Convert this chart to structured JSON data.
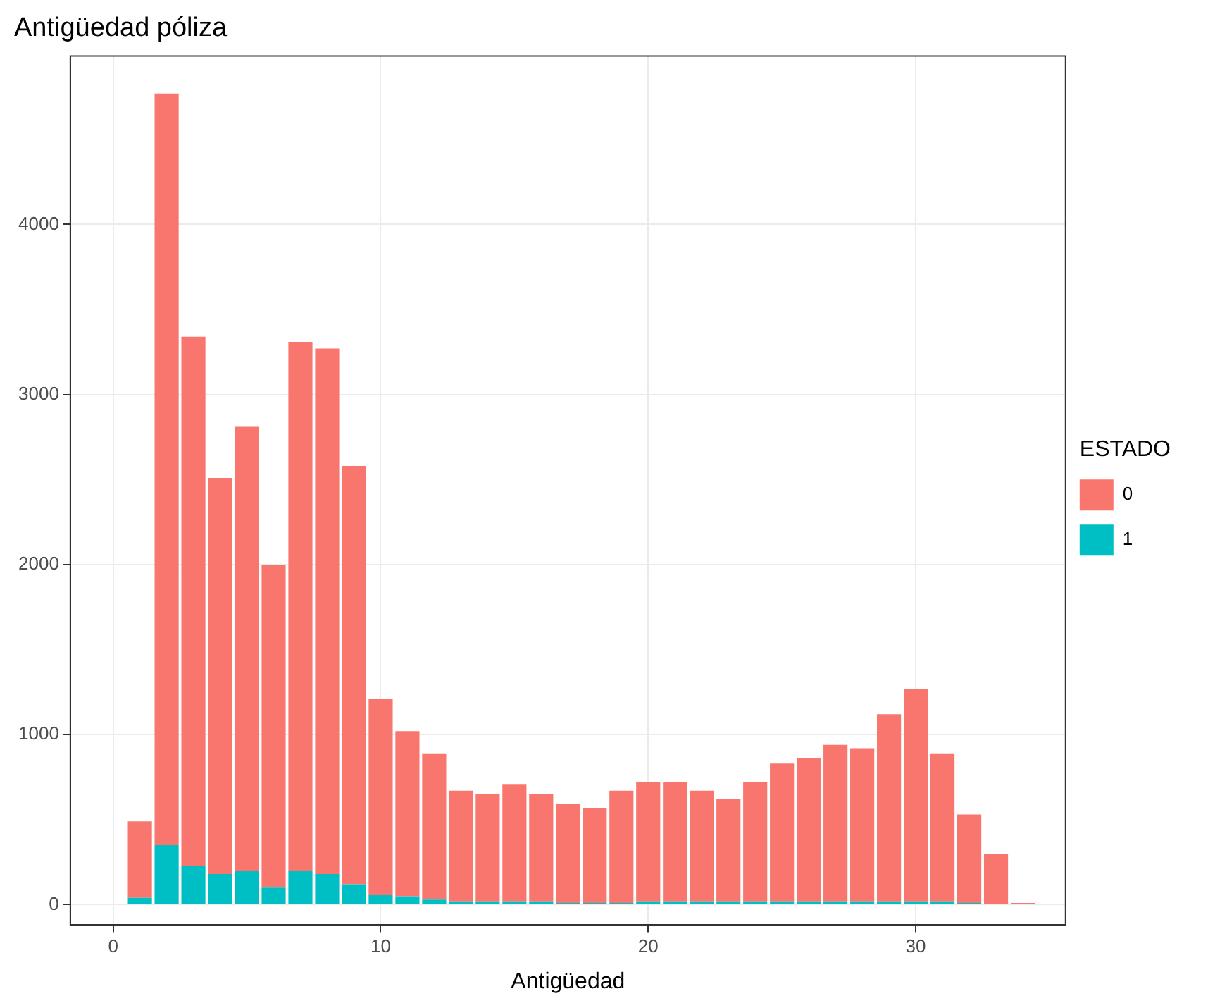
{
  "chart_data": {
    "type": "bar",
    "title": "Antigüedad póliza",
    "xlabel": "Antigüedad",
    "legend_title": "ESTADO",
    "stacked": true,
    "grid": true,
    "legend": "right",
    "x": [
      1,
      2,
      3,
      4,
      5,
      6,
      7,
      8,
      9,
      10,
      11,
      12,
      13,
      14,
      15,
      16,
      17,
      18,
      19,
      20,
      21,
      22,
      23,
      24,
      25,
      26,
      27,
      28,
      29,
      30,
      31,
      32,
      33,
      34
    ],
    "series": [
      {
        "name": "1",
        "color": "#00bfc4",
        "values": [
          40,
          350,
          230,
          180,
          200,
          100,
          200,
          180,
          120,
          60,
          50,
          30,
          20,
          20,
          20,
          20,
          10,
          10,
          10,
          20,
          20,
          20,
          20,
          20,
          20,
          20,
          20,
          20,
          20,
          20,
          20,
          10,
          0,
          0
        ]
      },
      {
        "name": "0",
        "color": "#f8766d",
        "values": [
          450,
          4420,
          3110,
          2330,
          2610,
          1900,
          3110,
          3090,
          2460,
          1150,
          970,
          860,
          650,
          630,
          690,
          630,
          580,
          560,
          660,
          700,
          700,
          650,
          600,
          700,
          810,
          840,
          920,
          900,
          1100,
          1250,
          870,
          520,
          300,
          10
        ]
      }
    ],
    "xlim": [
      -1.6,
      35.6
    ],
    "xticks": [
      0,
      10,
      20,
      30
    ],
    "ylim": [
      -120,
      4990
    ],
    "yticks": [
      0,
      1000,
      2000,
      3000,
      4000
    ]
  }
}
